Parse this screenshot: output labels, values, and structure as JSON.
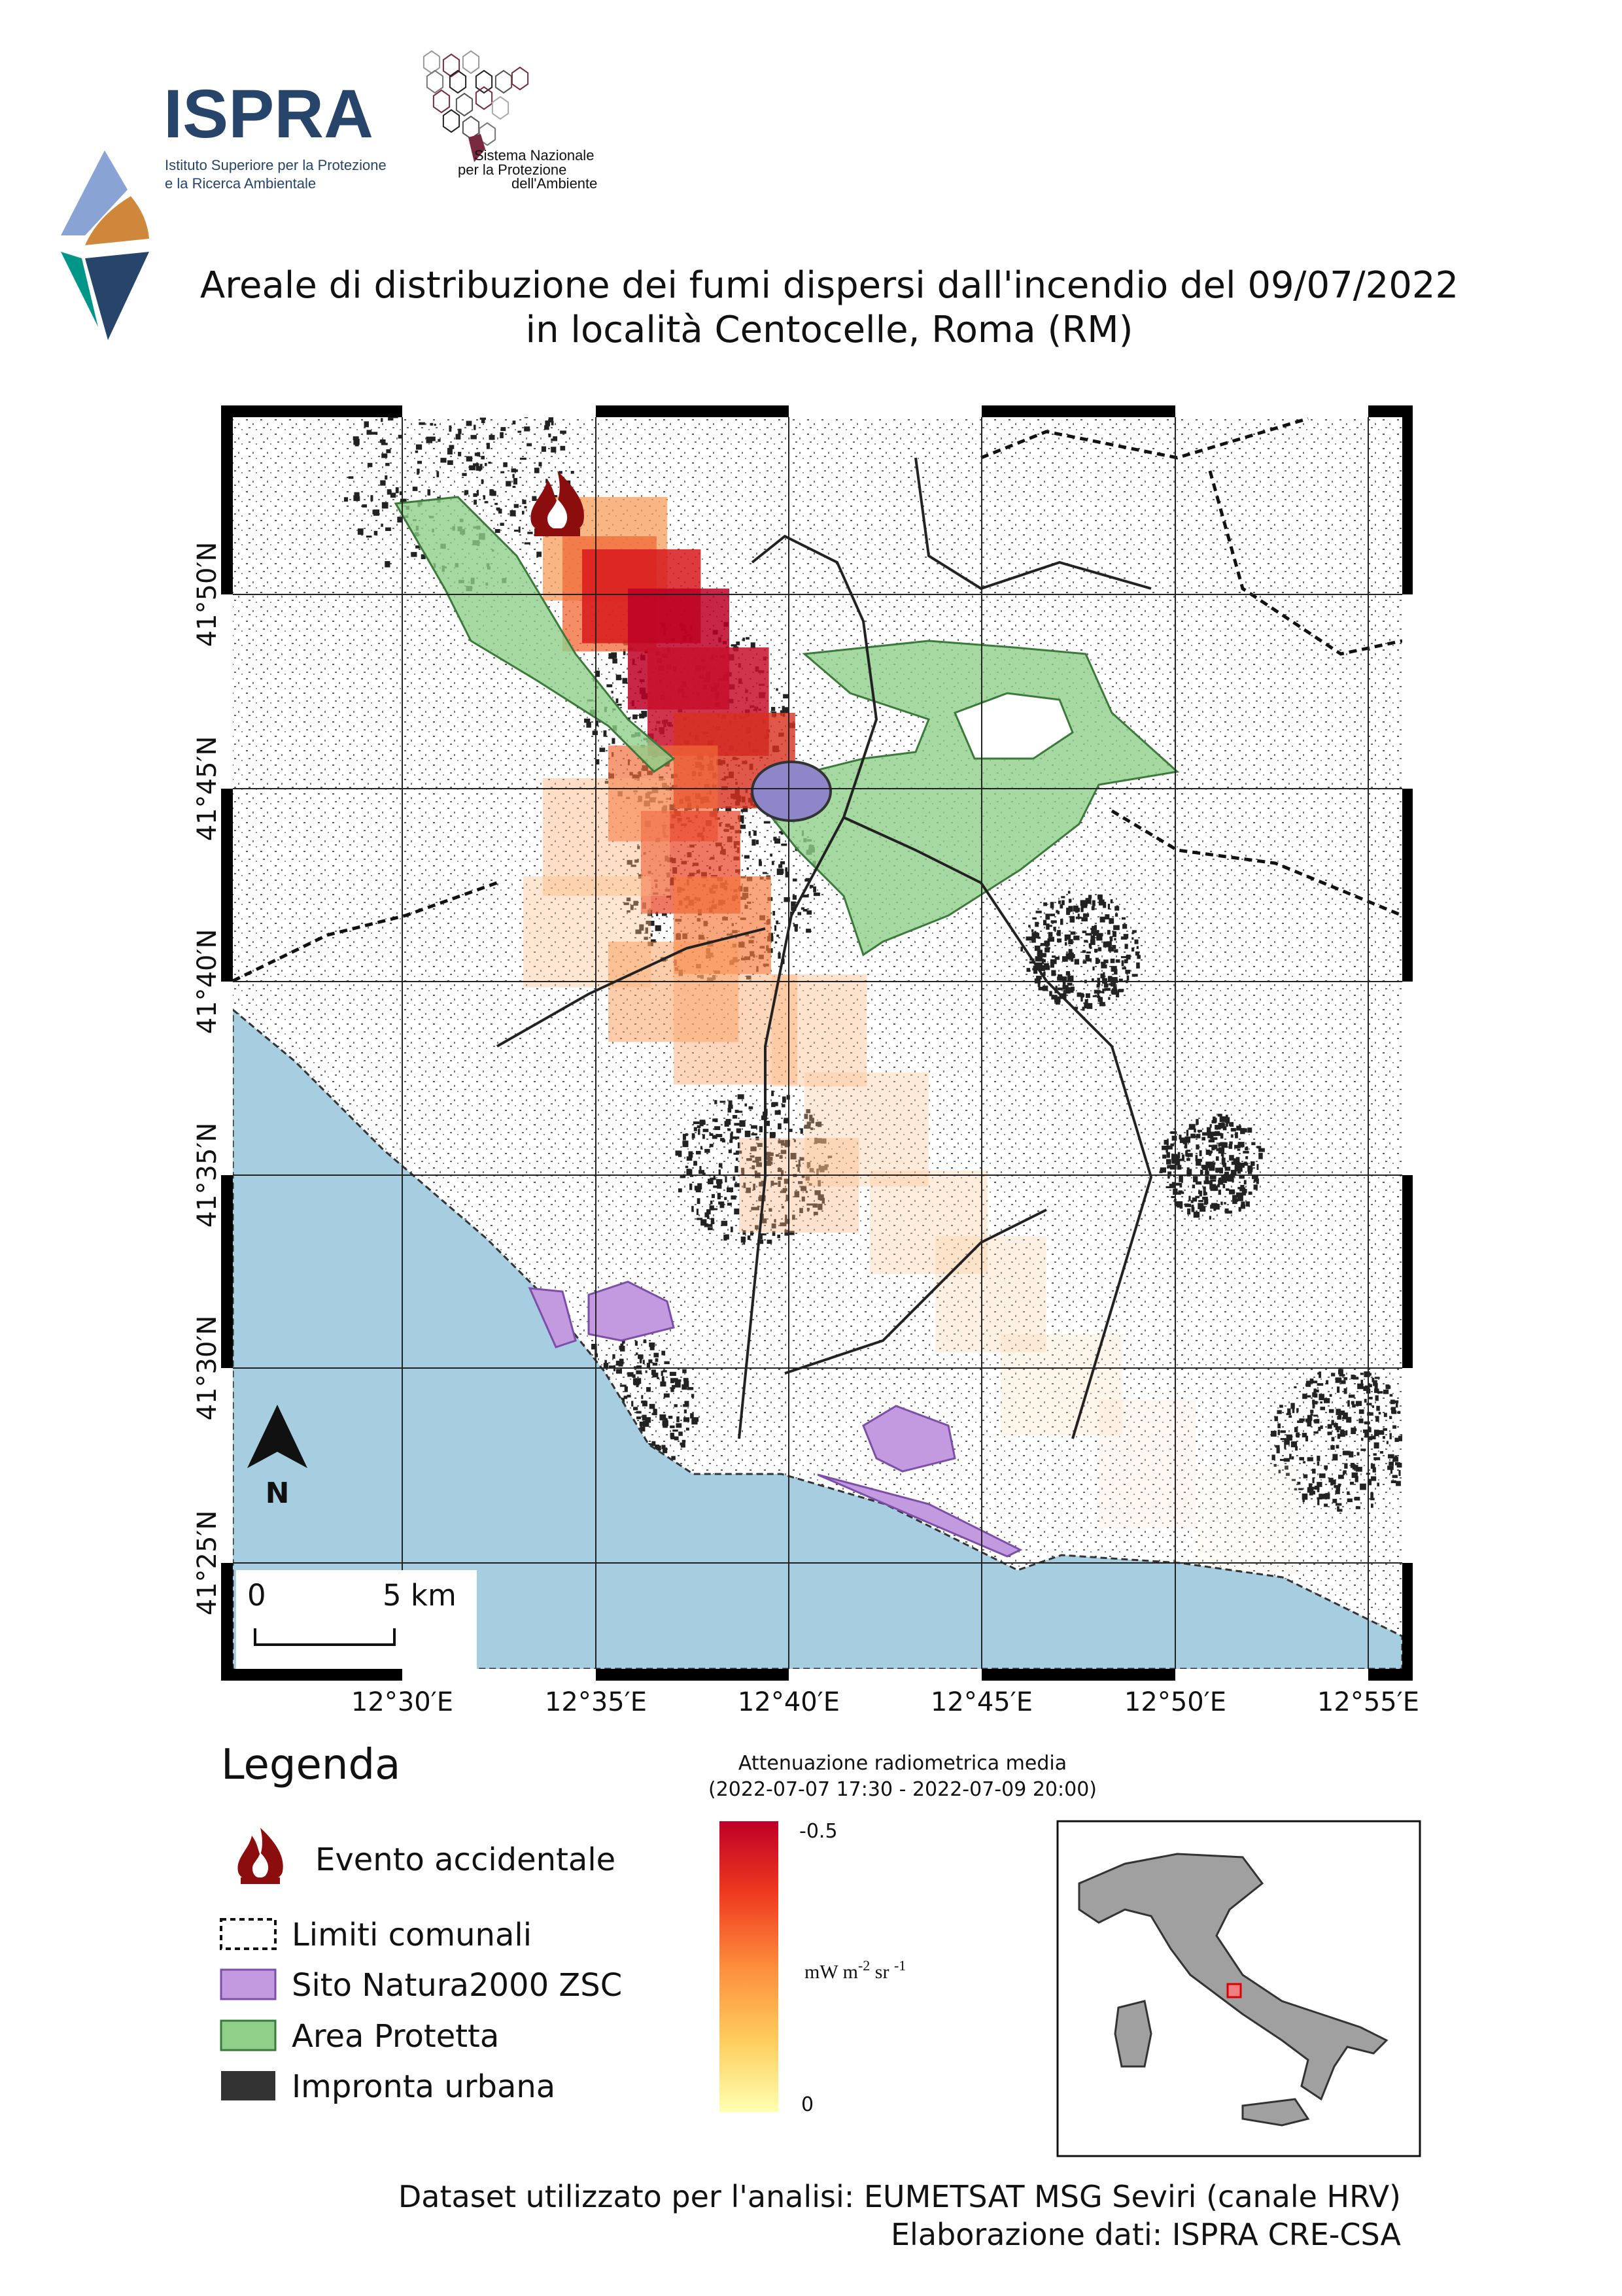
{
  "logos": {
    "ispra": {
      "name": "ISPRA",
      "line1": "Istituto Superiore per la Protezione",
      "line2": "e la Ricerca Ambientale"
    },
    "snpa": {
      "line1": "Sistema Nazionale",
      "line2": "per la Protezione",
      "line3": "dell'Ambiente"
    }
  },
  "title": {
    "line1": "Areale di distribuzione dei fumi dispersi dall'incendio del 09/07/2022",
    "line2": "in località Centocelle, Roma (RM)"
  },
  "map": {
    "lat_labels": [
      "41°50′N",
      "41°45′N",
      "41°40′N",
      "41°35′N",
      "41°30′N",
      "41°25′N"
    ],
    "lon_labels": [
      "12°30′E",
      "12°35′E",
      "12°40′E",
      "12°45′E",
      "12°50′E",
      "12°55′E"
    ],
    "scale_bar": {
      "start": "0",
      "end": "5 km"
    },
    "north_label": "N",
    "colors": {
      "sea": "#a6cde0",
      "protected_area": "#8fcf8a",
      "natura2000": "#c39ae0",
      "urban": "#333333"
    }
  },
  "legend": {
    "title": "Legenda",
    "items": [
      {
        "icon": "fire-icon",
        "label": "Evento accidentale"
      },
      {
        "icon": "dashed-box",
        "label": "Limiti comunali"
      },
      {
        "icon": "purple-box",
        "label": "Sito Natura2000 ZSC"
      },
      {
        "icon": "green-box",
        "label": "Area Protetta"
      },
      {
        "icon": "dark-box",
        "label": "Impronta urbana"
      }
    ]
  },
  "colorbar": {
    "title_line1": "Attenuazione radiometrica media",
    "title_line2": "(2022-07-07 17:30 - 2022-07-09 20:00)",
    "max_label": "-0.5",
    "min_label": "0",
    "unit_base": "mW m",
    "unit_exp1": "-2",
    "unit_mid": " sr ",
    "unit_exp2": "-1",
    "colors": [
      "#bd0026",
      "#f03b20",
      "#fd8d3c",
      "#fecc5c",
      "#ffffb2"
    ]
  },
  "footer": {
    "line1": "Dataset utilizzato per l'analisi: EUMETSAT MSG Seviri (canale HRV)",
    "line2": "Elaborazione dati: ISPRA CRE-CSA"
  }
}
